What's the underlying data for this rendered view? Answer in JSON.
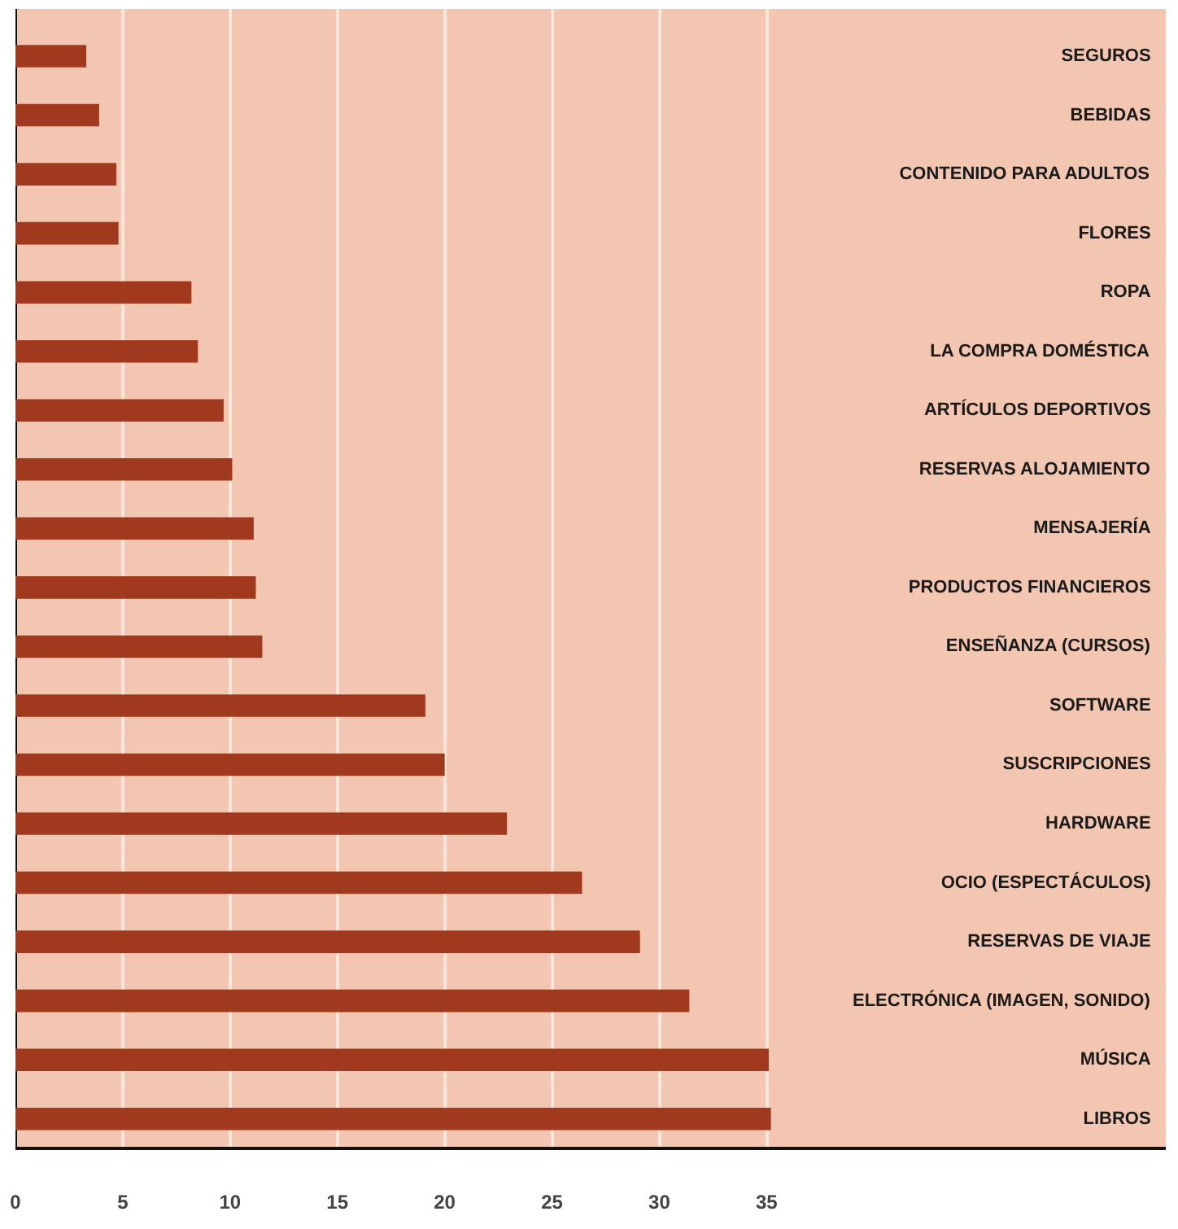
{
  "chart_data": {
    "type": "bar",
    "orientation": "horizontal",
    "categories": [
      "SEGUROS",
      "BEBIDAS",
      "CONTENIDO PARA ADULTOS",
      "FLORES",
      "ROPA",
      "LA COMPRA DOMÉSTICA",
      "ARTÍCULOS DEPORTIVOS",
      "RESERVAS ALOJAMIENTO",
      "MENSAJERÍA",
      "PRODUCTOS FINANCIEROS",
      "ENSEÑANZA (CURSOS)",
      "SOFTWARE",
      "SUSCRIPCIONES",
      "HARDWARE",
      "OCIO (ESPECTÁCULOS)",
      "RESERVAS DE VIAJE",
      "ELECTRÓNICA (IMAGEN, SONIDO)",
      "MÚSICA",
      "LIBROS"
    ],
    "values": [
      3.3,
      3.9,
      4.7,
      4.8,
      8.2,
      8.5,
      9.7,
      10.1,
      11.1,
      11.2,
      11.5,
      19.1,
      20.0,
      22.9,
      26.4,
      29.1,
      31.4,
      35.1,
      35.2
    ],
    "color": "#a0391e",
    "xlim": [
      0,
      53.6
    ],
    "xticks": [
      0,
      5,
      10,
      15,
      20,
      25,
      30,
      35
    ],
    "grid": "x"
  }
}
